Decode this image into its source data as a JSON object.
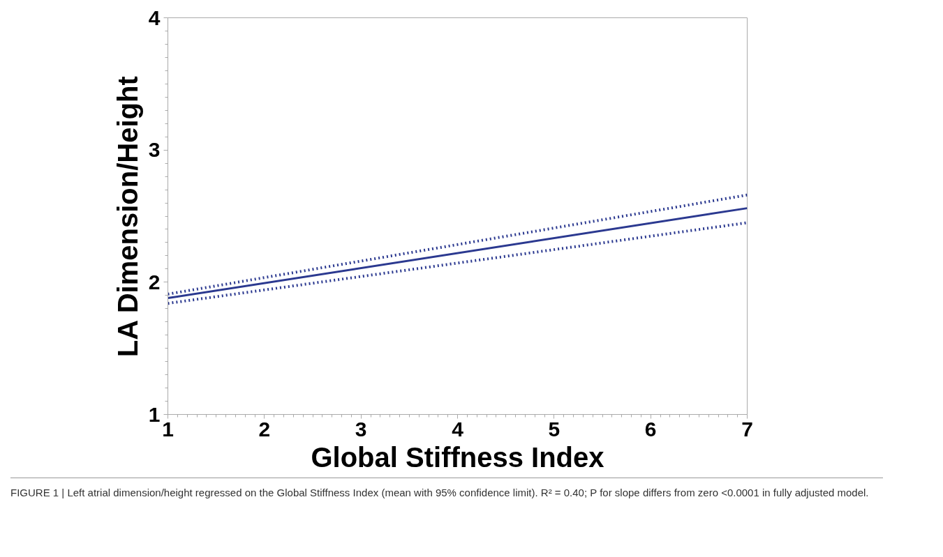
{
  "chart_data": {
    "type": "line",
    "xlabel": "Global Stiffness Index",
    "ylabel": "LA Dimension/Height",
    "x": [
      1,
      7
    ],
    "series": [
      {
        "color": "#2b3990",
        "values": [
          1.88,
          2.56
        ],
        "line_style": "solid"
      },
      {
        "color": "#2b3990",
        "values": [
          1.91,
          2.66
        ],
        "line_style": "dotted"
      },
      {
        "color": "#2b3990",
        "values": [
          1.84,
          2.45
        ],
        "line_style": "dotted"
      }
    ],
    "xlim": [
      1,
      7
    ],
    "ylim": [
      1,
      4
    ],
    "xticks": [
      1,
      2,
      3,
      4,
      5,
      6,
      7
    ],
    "yticks": [
      1,
      2,
      3,
      4
    ],
    "grid": false,
    "marker": "none",
    "annotations": [
      "FIGURE 1 | Left atrial dimension/height regressed on the Global Stiffness Index (mean with 95% confidence limit). R² = 0.40; P for slope differs from zero <0.0001 in fully adjusted model."
    ]
  }
}
